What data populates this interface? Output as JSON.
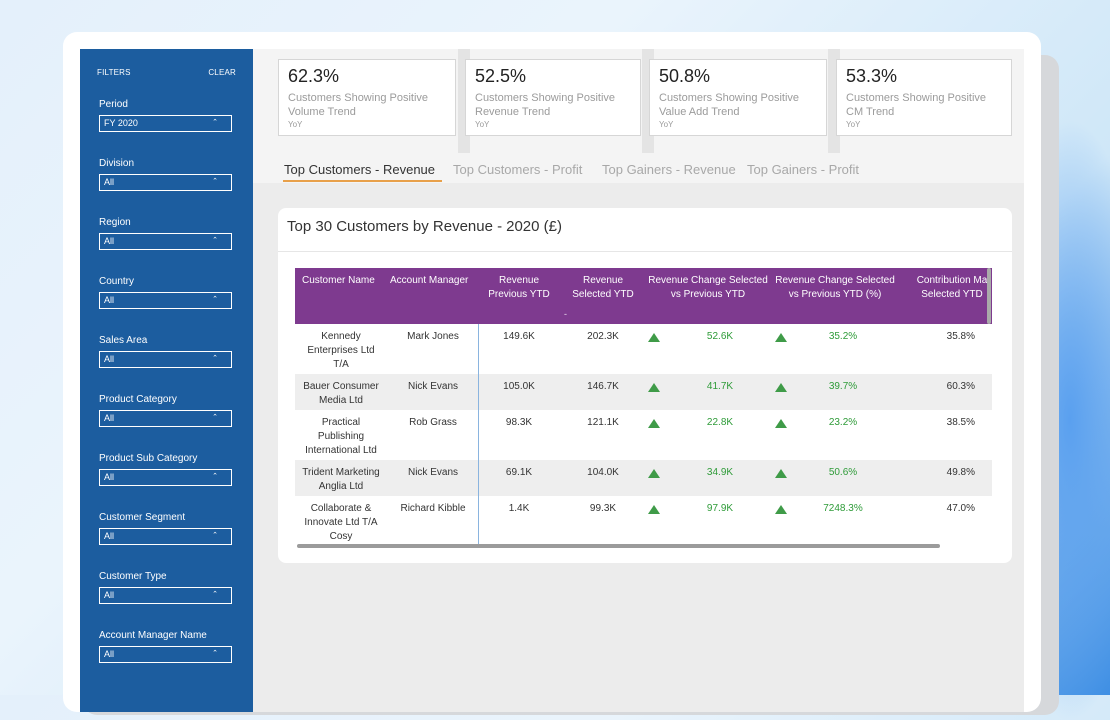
{
  "sidebar": {
    "filters_label": "FILTERS",
    "clear_label": "CLEAR",
    "filters": [
      {
        "label": "Period",
        "value": "FY 2020"
      },
      {
        "label": "Division",
        "value": "All"
      },
      {
        "label": "Region",
        "value": "All"
      },
      {
        "label": "Country",
        "value": "All"
      },
      {
        "label": "Sales Area",
        "value": "All"
      },
      {
        "label": "Product Category",
        "value": "All"
      },
      {
        "label": "Product Sub Category",
        "value": "All"
      },
      {
        "label": "Customer Segment",
        "value": "All"
      },
      {
        "label": "Customer Type",
        "value": "All"
      },
      {
        "label": "Account Manager Name",
        "value": "All"
      }
    ]
  },
  "kpis": [
    {
      "value": "62.3%",
      "caption": "Customers Showing Positive Volume Trend",
      "sub": "YoY"
    },
    {
      "value": "52.5%",
      "caption": "Customers Showing Positive Revenue Trend",
      "sub": "YoY"
    },
    {
      "value": "50.8%",
      "caption": "Customers Showing Positive Value Add Trend",
      "sub": "YoY"
    },
    {
      "value": "53.3%",
      "caption": "Customers Showing Positive CM Trend",
      "sub": "YoY"
    }
  ],
  "tabs": [
    {
      "label": "Top Customers - Revenue",
      "active": true
    },
    {
      "label": "Top Customers - Profit",
      "active": false
    },
    {
      "label": "Top Gainers - Revenue",
      "active": false
    },
    {
      "label": "Top Gainers - Profit",
      "active": false
    }
  ],
  "panel": {
    "title": "Top 30 Customers by Revenue -",
    "year": "2020 (£)"
  },
  "table": {
    "headers": {
      "customer": "Customer Name",
      "manager": "Account Manager",
      "rev_prev": "Revenue Previous YTD",
      "rev_sel": "Revenue Selected YTD",
      "rev_change": "Revenue Change Selected vs Previous YTD",
      "rev_change_pct": "Revenue Change Selected vs Previous YTD (%)",
      "contribution": "Contribution Ma Selected YTD"
    },
    "sort_mark": "-",
    "rows": [
      {
        "customer": "Kennedy Enterprises Ltd T/A",
        "manager": "Mark Jones",
        "rev_prev": "149.6K",
        "rev_sel": "202.3K",
        "rev_change": "52.6K",
        "rev_change_pct": "35.2%",
        "contribution": "35.8%"
      },
      {
        "customer": "Bauer Consumer Media Ltd",
        "manager": "Nick Evans",
        "rev_prev": "105.0K",
        "rev_sel": "146.7K",
        "rev_change": "41.7K",
        "rev_change_pct": "39.7%",
        "contribution": "60.3%"
      },
      {
        "customer": "Practical Publishing International Ltd",
        "manager": "Rob Grass",
        "rev_prev": "98.3K",
        "rev_sel": "121.1K",
        "rev_change": "22.8K",
        "rev_change_pct": "23.2%",
        "contribution": "38.5%"
      },
      {
        "customer": "Trident Marketing Anglia Ltd",
        "manager": "Nick Evans",
        "rev_prev": "69.1K",
        "rev_sel": "104.0K",
        "rev_change": "34.9K",
        "rev_change_pct": "50.6%",
        "contribution": "49.8%"
      },
      {
        "customer": "Collaborate & Innovate Ltd T/A Cosy",
        "manager": "Richard Kibble",
        "rev_prev": "1.4K",
        "rev_sel": "99.3K",
        "rev_change": "97.9K",
        "rev_change_pct": "7248.3%",
        "contribution": "47.0%"
      }
    ]
  },
  "colors": {
    "sidebar": "#1c5d9f",
    "header": "#7e3a8f",
    "positive": "#2e9b38",
    "accent": "#e8a04a"
  }
}
